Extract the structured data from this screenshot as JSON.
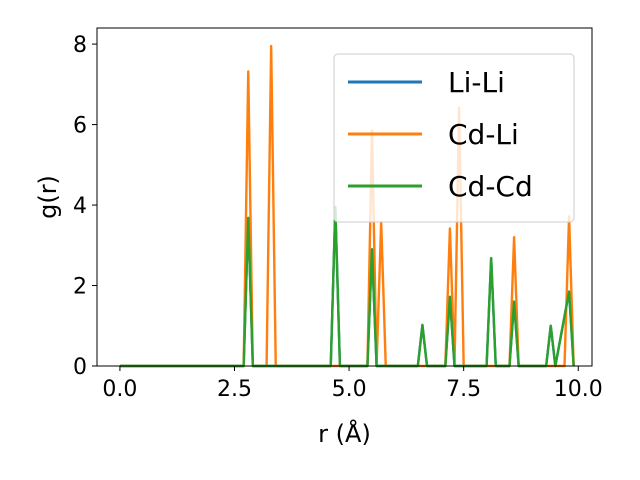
{
  "chart_data": {
    "type": "line",
    "xlabel": "r (Å)",
    "ylabel": "g(r)",
    "xlim": [
      -0.5,
      10.3
    ],
    "ylim": [
      0,
      8.4
    ],
    "xticks": [
      0.0,
      2.5,
      5.0,
      7.5,
      10.0
    ],
    "xtick_labels": [
      "0.0",
      "2.5",
      "5.0",
      "7.5",
      "10.0"
    ],
    "yticks": [
      0,
      2,
      4,
      6,
      8
    ],
    "ytick_labels": [
      "0",
      "2",
      "4",
      "6",
      "8"
    ],
    "legend_position": "upper-right",
    "grid": false,
    "series": [
      {
        "name": "Li-Li",
        "color": "#1f77b4",
        "x": [
          0.0,
          2.7,
          2.8,
          2.9,
          4.6,
          4.7,
          4.8,
          5.4,
          5.5,
          5.6,
          6.5,
          6.6,
          6.7,
          7.1,
          7.2,
          7.3,
          8.0,
          8.1,
          8.2,
          8.5,
          8.6,
          8.7,
          9.3,
          9.4,
          9.5,
          9.8,
          9.9
        ],
        "y": [
          0,
          0,
          3.68,
          0,
          0,
          3.95,
          0,
          0,
          2.9,
          0,
          0,
          1.02,
          0,
          0,
          1.72,
          0,
          0,
          2.68,
          0,
          0,
          1.6,
          0,
          0,
          1.0,
          0,
          1.85,
          0
        ]
      },
      {
        "name": "Cd-Li",
        "color": "#ff7f0e",
        "x": [
          0.0,
          2.7,
          2.8,
          2.9,
          3.2,
          3.3,
          3.4,
          5.4,
          5.5,
          5.6,
          5.7,
          5.8,
          7.1,
          7.2,
          7.3,
          7.4,
          7.5,
          8.5,
          8.6,
          8.7,
          9.7,
          9.8,
          9.9
        ],
        "y": [
          0,
          0,
          7.32,
          0,
          0,
          7.95,
          0,
          0,
          5.85,
          0,
          3.58,
          0,
          0,
          3.42,
          0,
          6.42,
          0,
          0,
          3.2,
          0,
          0,
          3.72,
          0
        ]
      },
      {
        "name": "Cd-Cd",
        "color": "#2ca02c",
        "x": [
          0.0,
          2.7,
          2.8,
          2.9,
          4.6,
          4.7,
          4.8,
          5.4,
          5.5,
          5.6,
          6.5,
          6.6,
          6.7,
          7.1,
          7.2,
          7.3,
          8.0,
          8.1,
          8.2,
          8.5,
          8.6,
          8.7,
          9.3,
          9.4,
          9.5,
          9.8,
          9.9
        ],
        "y": [
          0,
          0,
          3.68,
          0,
          0,
          3.95,
          0,
          0,
          2.9,
          0,
          0,
          1.02,
          0,
          0,
          1.72,
          0,
          0,
          2.68,
          0,
          0,
          1.6,
          0,
          0,
          1.0,
          0,
          1.85,
          0
        ]
      }
    ]
  }
}
